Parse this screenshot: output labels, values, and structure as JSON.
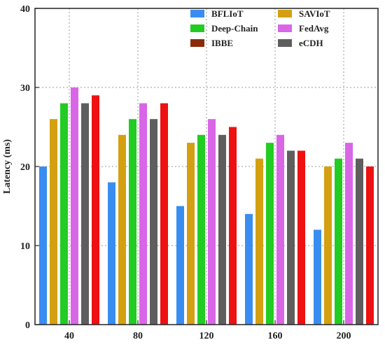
{
  "chart_data": {
    "type": "bar",
    "title": "",
    "xlabel": "",
    "ylabel": "Latency (ms)",
    "categories": [
      "40",
      "80",
      "120",
      "160",
      "200"
    ],
    "ylim": [
      0,
      40
    ],
    "yticks": [
      0,
      10,
      20,
      30,
      40
    ],
    "grid": "dotted",
    "legend_position": "top-right",
    "series": [
      {
        "name": "BFLIoT",
        "color": "#3a8df0",
        "values": [
          20,
          18,
          15,
          14,
          12
        ]
      },
      {
        "name": "SAVIoT",
        "color": "#d4a012",
        "values": [
          26,
          24,
          23,
          21,
          20
        ]
      },
      {
        "name": "Deep-Chain",
        "color": "#22cc22",
        "values": [
          28,
          26,
          24,
          23,
          21
        ]
      },
      {
        "name": "FedAvg",
        "color": "#d966e6",
        "values": [
          30,
          28,
          26,
          24,
          23
        ]
      },
      {
        "name": "eCDH",
        "color": "#5e5e5e",
        "values": [
          28,
          26,
          24,
          22,
          21
        ]
      },
      {
        "name": "",
        "color": "#ee1111",
        "values": [
          29,
          28,
          25,
          22,
          20
        ]
      }
    ],
    "legend": [
      {
        "name": "BFLIoT",
        "color": "#3a8df0"
      },
      {
        "name": "SAVIoT",
        "color": "#d4a012"
      },
      {
        "name": "Deep-Chain",
        "color": "#22cc22"
      },
      {
        "name": "FedAvg",
        "color": "#d966e6"
      },
      {
        "name": "IBBE",
        "color": "#8b2a08"
      },
      {
        "name": "eCDH",
        "color": "#5e5e5e"
      }
    ]
  }
}
